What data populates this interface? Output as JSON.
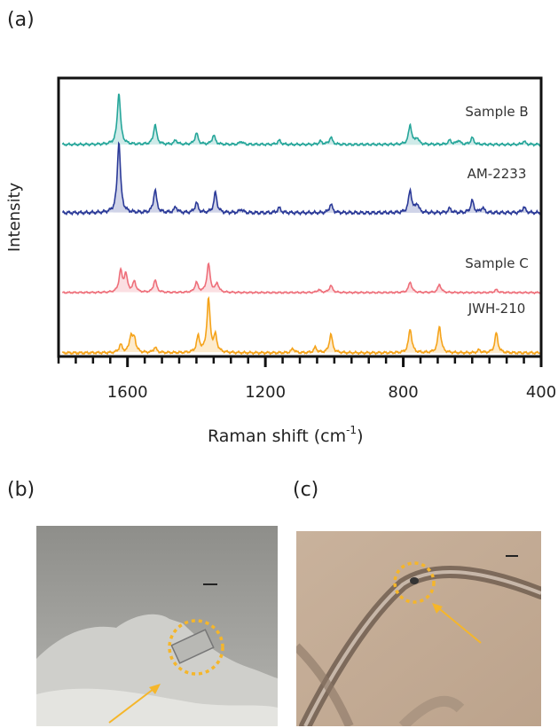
{
  "panels": {
    "a": "(a)",
    "b": "(b)",
    "c": "(c)"
  },
  "chart_data": {
    "type": "line",
    "xlabel": "Raman shift (cm",
    "xlabel_superscript": "-1",
    "xlabel_suffix": ")",
    "ylabel": "Intensity",
    "xlim": [
      1800,
      400
    ],
    "x_reversed": true,
    "xticks": [
      1600,
      1200,
      800,
      400
    ],
    "tick_labels": [
      "1600",
      "1200",
      "800",
      "400"
    ],
    "minor_tick_step": 50,
    "grid": false,
    "series": [
      {
        "name": "Sample B",
        "color": "#26a69a",
        "peaks": [
          [
            1625,
            1.0
          ],
          [
            1520,
            0.38
          ],
          [
            1460,
            0.08
          ],
          [
            1400,
            0.22
          ],
          [
            1350,
            0.18
          ],
          [
            1270,
            0.06
          ],
          [
            1160,
            0.08
          ],
          [
            1010,
            0.14
          ],
          [
            1040,
            0.06
          ],
          [
            780,
            0.38
          ],
          [
            760,
            0.12
          ],
          [
            665,
            0.08
          ],
          [
            640,
            0.08
          ],
          [
            600,
            0.13
          ],
          [
            450,
            0.06
          ]
        ]
      },
      {
        "name": "AM-2233",
        "color": "#2b3a98",
        "peaks": [
          [
            1625,
            1.0
          ],
          [
            1520,
            0.32
          ],
          [
            1460,
            0.08
          ],
          [
            1400,
            0.14
          ],
          [
            1345,
            0.28
          ],
          [
            1270,
            0.05
          ],
          [
            1160,
            0.07
          ],
          [
            1010,
            0.12
          ],
          [
            780,
            0.32
          ],
          [
            760,
            0.12
          ],
          [
            665,
            0.06
          ],
          [
            600,
            0.17
          ],
          [
            570,
            0.07
          ],
          [
            450,
            0.08
          ]
        ]
      },
      {
        "name": "Sample C",
        "color": "#ee6f7a",
        "peaks": [
          [
            1620,
            0.6
          ],
          [
            1605,
            0.5
          ],
          [
            1580,
            0.3
          ],
          [
            1520,
            0.35
          ],
          [
            1400,
            0.28
          ],
          [
            1365,
            0.8
          ],
          [
            1340,
            0.25
          ],
          [
            1010,
            0.2
          ],
          [
            1045,
            0.08
          ],
          [
            780,
            0.3
          ],
          [
            695,
            0.23
          ],
          [
            530,
            0.08
          ]
        ]
      },
      {
        "name": "JWH-210",
        "color": "#f5a31a",
        "peaks": [
          [
            1620,
            0.15
          ],
          [
            1590,
            0.3
          ],
          [
            1580,
            0.25
          ],
          [
            1520,
            0.1
          ],
          [
            1395,
            0.3
          ],
          [
            1365,
            1.0
          ],
          [
            1345,
            0.3
          ],
          [
            1120,
            0.08
          ],
          [
            1055,
            0.1
          ],
          [
            1010,
            0.35
          ],
          [
            780,
            0.45
          ],
          [
            695,
            0.5
          ],
          [
            530,
            0.37
          ],
          [
            580,
            0.05
          ]
        ]
      }
    ]
  },
  "photos": {
    "b": {
      "bg": "#9a9a96"
    },
    "c": {
      "bg": "#c3ab95"
    }
  },
  "colors": {
    "highlight": "#f5b62a",
    "axis": "#111111"
  }
}
